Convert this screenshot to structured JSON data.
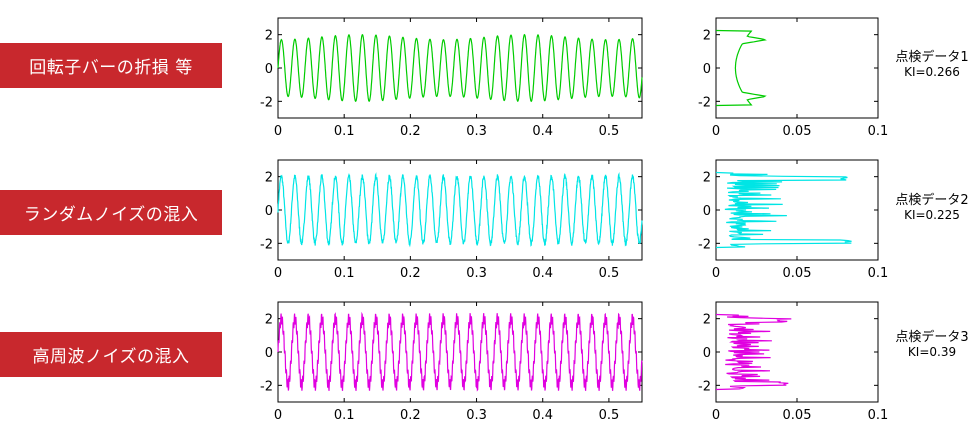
{
  "rows": [
    {
      "label": "回転子バーの折損 等",
      "note_title": "点検データ1",
      "note_ki": "KI=0.266",
      "color": "#00cc00"
    },
    {
      "label": "ランダムノイズの混入",
      "note_title": "点検データ2",
      "note_ki": "KI=0.225",
      "color": "#00e5e5"
    },
    {
      "label": "高周波ノイズの混入",
      "note_title": "点検データ3",
      "note_ki": "KI=0.39",
      "color": "#e000e0"
    }
  ],
  "chart_data": [
    {
      "type": "line",
      "title": "",
      "xlabel": "",
      "ylabel": "",
      "xlim": [
        0,
        0.55
      ],
      "ylim": [
        -3,
        3
      ],
      "xticks": [
        "0",
        "0.1",
        "0.2",
        "0.3",
        "0.4",
        "0.5"
      ],
      "yticks": [
        "2",
        "0",
        "-2"
      ],
      "series": [
        {
          "frequency_cycles_per_unit": 49,
          "amplitude": 2.0,
          "modulation_depth": 0.15,
          "modulation_frequency": 4,
          "color": "#00cc00"
        }
      ]
    },
    {
      "type": "line",
      "title": "",
      "xlabel": "",
      "ylabel": "",
      "xlim": [
        0,
        0.1
      ],
      "ylim": [
        -3,
        3
      ],
      "xticks": [
        "0",
        "0.05",
        "0.1"
      ],
      "yticks": [
        "2",
        "0",
        "-2"
      ],
      "series": [
        {
          "shape": "amplitude histogram",
          "peaks_at": [
            -1.7,
            1.7
          ],
          "peak_value": 0.031,
          "base_value": 0.012,
          "color": "#00cc00"
        }
      ]
    },
    {
      "type": "line",
      "title": "",
      "xlabel": "",
      "ylabel": "",
      "xlim": [
        0,
        0.55
      ],
      "ylim": [
        -3,
        3
      ],
      "xticks": [
        "0",
        "0.1",
        "0.2",
        "0.3",
        "0.4",
        "0.5"
      ],
      "yticks": [
        "2",
        "0",
        "-2"
      ],
      "series": [
        {
          "frequency_cycles_per_unit": 49,
          "amplitude": 2.0,
          "noise": 0.15,
          "color": "#00e5e5"
        }
      ]
    },
    {
      "type": "line",
      "title": "",
      "xlabel": "",
      "ylabel": "",
      "xlim": [
        0,
        0.1
      ],
      "ylim": [
        -3,
        3
      ],
      "xticks": [
        "0",
        "0.05",
        "0.1"
      ],
      "yticks": [
        "2",
        "0",
        "-2"
      ],
      "series": [
        {
          "shape": "amplitude histogram",
          "peaks_at": [
            -1.9,
            1.9
          ],
          "peak_value": 0.084,
          "base_value": 0.012,
          "color": "#00e5e5"
        }
      ]
    },
    {
      "type": "line",
      "title": "",
      "xlabel": "",
      "ylabel": "",
      "xlim": [
        0,
        0.55
      ],
      "ylim": [
        -3,
        3
      ],
      "xticks": [
        "0",
        "0.1",
        "0.2",
        "0.3",
        "0.4",
        "0.5"
      ],
      "yticks": [
        "2",
        "0",
        "-2"
      ],
      "series": [
        {
          "frequency_cycles_per_unit": 49,
          "amplitude": 2.0,
          "harmonic_frequency": 490,
          "harmonic_amplitude": 0.35,
          "color": "#e000e0"
        }
      ]
    },
    {
      "type": "line",
      "title": "",
      "xlabel": "",
      "ylabel": "",
      "xlim": [
        0,
        0.1
      ],
      "ylim": [
        -3,
        3
      ],
      "xticks": [
        "0",
        "0.05",
        "0.1"
      ],
      "yticks": [
        "2",
        "0",
        "-2"
      ],
      "series": [
        {
          "shape": "amplitude histogram",
          "peaks_at": [
            -1.9,
            1.9
          ],
          "peak_value": 0.047,
          "base_value": 0.012,
          "color": "#e000e0"
        }
      ]
    }
  ]
}
